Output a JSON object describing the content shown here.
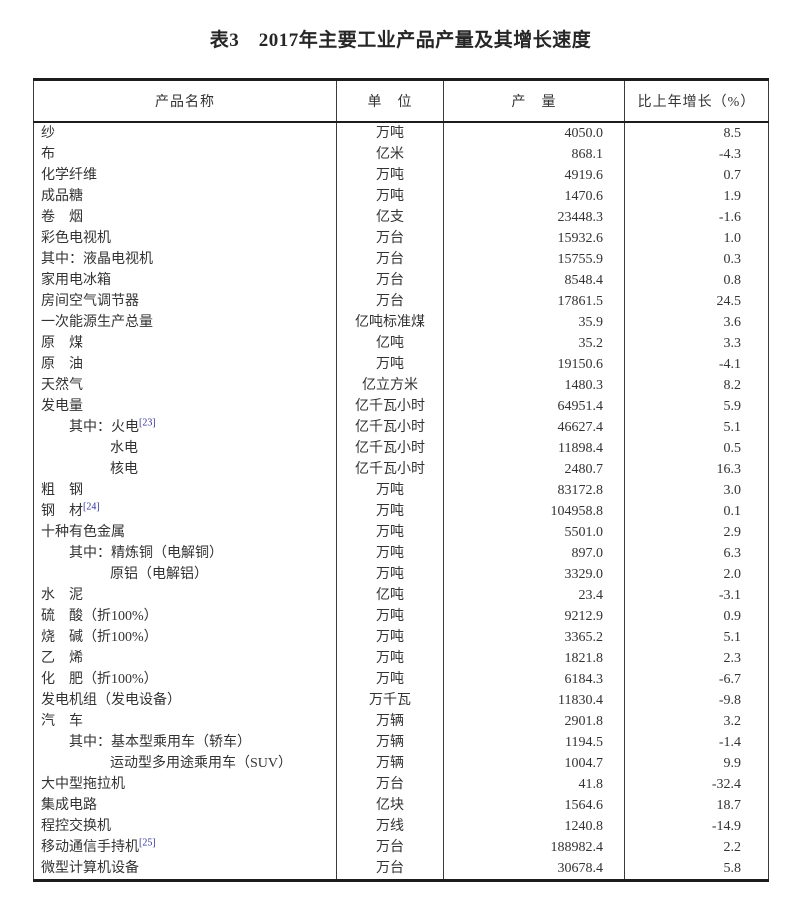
{
  "title": "表3　2017年主要工业产品产量及其增长速度",
  "colors": {
    "text": "#333333",
    "border_heavy": "#1c1c1c",
    "border_light": "#3a3a3a",
    "footnote_link": "#32329f",
    "page_background": "#ffffff"
  },
  "table": {
    "headers": {
      "product": "产品名称",
      "unit": "单　位",
      "output": "产　量",
      "growth": "比上年增长（%）"
    },
    "rows": [
      {
        "name": "纱",
        "indent": 0,
        "unit": "万吨",
        "output": "4050.0",
        "growth": "8.5"
      },
      {
        "name": "布",
        "indent": 0,
        "unit": "亿米",
        "output": "868.1",
        "growth": "-4.3"
      },
      {
        "name": "化学纤维",
        "indent": 0,
        "unit": "万吨",
        "output": "4919.6",
        "growth": "0.7"
      },
      {
        "name": "成品糖",
        "indent": 0,
        "unit": "万吨",
        "output": "1470.6",
        "growth": "1.9"
      },
      {
        "name": "卷　烟",
        "indent": 0,
        "unit": "亿支",
        "output": "23448.3",
        "growth": "-1.6"
      },
      {
        "name": "彩色电视机",
        "indent": 0,
        "unit": "万台",
        "output": "15932.6",
        "growth": "1.0"
      },
      {
        "name": "其中：液晶电视机",
        "indent": 0,
        "unit": "万台",
        "output": "15755.9",
        "growth": "0.3"
      },
      {
        "name": "家用电冰箱",
        "indent": 0,
        "unit": "万台",
        "output": "8548.4",
        "growth": "0.8"
      },
      {
        "name": "房间空气调节器",
        "indent": 0,
        "unit": "万台",
        "output": "17861.5",
        "growth": "24.5"
      },
      {
        "name": "一次能源生产总量",
        "indent": 0,
        "unit": "亿吨标准煤",
        "output": "35.9",
        "growth": "3.6"
      },
      {
        "name": "原　煤",
        "indent": 0,
        "unit": "亿吨",
        "output": "35.2",
        "growth": "3.3"
      },
      {
        "name": "原　油",
        "indent": 0,
        "unit": "万吨",
        "output": "19150.6",
        "growth": "-4.1"
      },
      {
        "name": "天然气",
        "indent": 0,
        "unit": "亿立方米",
        "output": "1480.3",
        "growth": "8.2"
      },
      {
        "name": "发电量",
        "indent": 0,
        "unit": "亿千瓦小时",
        "output": "64951.4",
        "growth": "5.9"
      },
      {
        "name": "其中：火电",
        "sup": "[23]",
        "indent": 1,
        "unit": "亿千瓦小时",
        "output": "46627.4",
        "growth": "5.1"
      },
      {
        "name": "水电",
        "indent": 2,
        "unit": "亿千瓦小时",
        "output": "11898.4",
        "growth": "0.5"
      },
      {
        "name": "核电",
        "indent": 2,
        "unit": "亿千瓦小时",
        "output": "2480.7",
        "growth": "16.3"
      },
      {
        "name": "粗　钢",
        "indent": 0,
        "unit": "万吨",
        "output": "83172.8",
        "growth": "3.0"
      },
      {
        "name": "钢　材",
        "sup": "[24]",
        "indent": 0,
        "unit": "万吨",
        "output": "104958.8",
        "growth": "0.1"
      },
      {
        "name": "十种有色金属",
        "indent": 0,
        "unit": "万吨",
        "output": "5501.0",
        "growth": "2.9"
      },
      {
        "name": "其中：精炼铜（电解铜）",
        "indent": 1,
        "unit": "万吨",
        "output": "897.0",
        "growth": "6.3"
      },
      {
        "name": "原铝（电解铝）",
        "indent": 2,
        "unit": "万吨",
        "output": "3329.0",
        "growth": "2.0"
      },
      {
        "name": "水　泥",
        "indent": 0,
        "unit": "亿吨",
        "output": "23.4",
        "growth": "-3.1"
      },
      {
        "name": "硫　酸（折100%）",
        "indent": 0,
        "unit": "万吨",
        "output": "9212.9",
        "growth": "0.9"
      },
      {
        "name": "烧　碱（折100%）",
        "indent": 0,
        "unit": "万吨",
        "output": "3365.2",
        "growth": "5.1"
      },
      {
        "name": "乙　烯",
        "indent": 0,
        "unit": "万吨",
        "output": "1821.8",
        "growth": "2.3"
      },
      {
        "name": "化　肥（折100%）",
        "indent": 0,
        "unit": "万吨",
        "output": "6184.3",
        "growth": "-6.7"
      },
      {
        "name": "发电机组（发电设备）",
        "indent": 0,
        "unit": "万千瓦",
        "output": "11830.4",
        "growth": "-9.8"
      },
      {
        "name": "汽　车",
        "indent": 0,
        "unit": "万辆",
        "output": "2901.8",
        "growth": "3.2"
      },
      {
        "name": "其中：基本型乘用车（轿车）",
        "indent": 1,
        "unit": "万辆",
        "output": "1194.5",
        "growth": "-1.4"
      },
      {
        "name": "运动型多用途乘用车（SUV）",
        "indent": 2,
        "unit": "万辆",
        "output": "1004.7",
        "growth": "9.9"
      },
      {
        "name": "大中型拖拉机",
        "indent": 0,
        "unit": "万台",
        "output": "41.8",
        "growth": "-32.4"
      },
      {
        "name": "集成电路",
        "indent": 0,
        "unit": "亿块",
        "output": "1564.6",
        "growth": "18.7"
      },
      {
        "name": "程控交换机",
        "indent": 0,
        "unit": "万线",
        "output": "1240.8",
        "growth": "-14.9"
      },
      {
        "name": "移动通信手持机",
        "sup": "[25]",
        "indent": 0,
        "unit": "万台",
        "output": "188982.4",
        "growth": "2.2"
      },
      {
        "name": "微型计算机设备",
        "indent": 0,
        "unit": "万台",
        "output": "30678.4",
        "growth": "5.8"
      }
    ]
  }
}
